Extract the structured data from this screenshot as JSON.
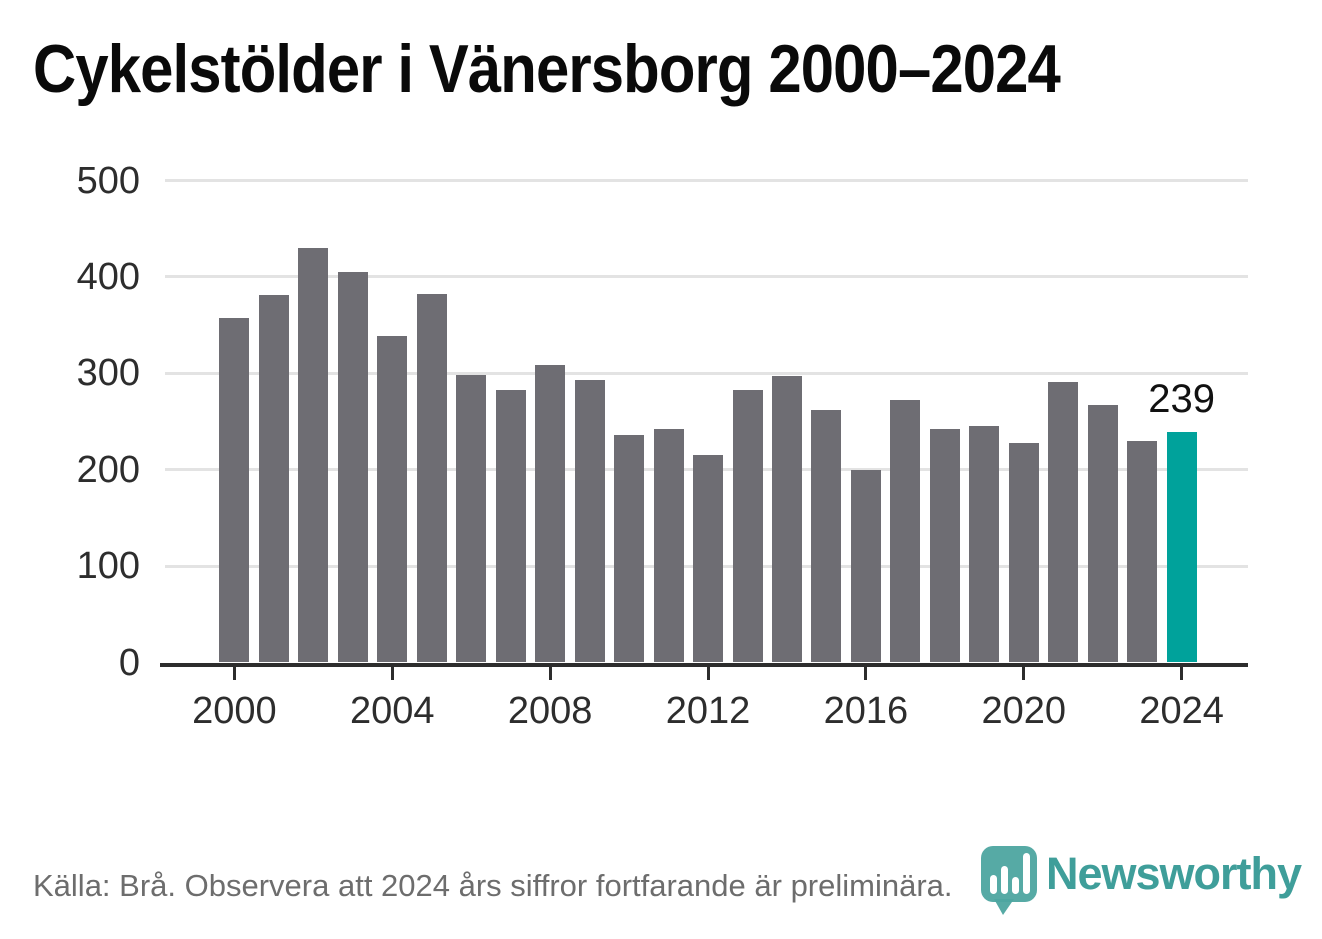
{
  "title": "Cykelstölder i Vänersborg 2000–2024",
  "chart_data": {
    "type": "bar",
    "title": "Cykelstölder i Vänersborg 2000–2024",
    "categories": [
      2000,
      2001,
      2002,
      2003,
      2004,
      2005,
      2006,
      2007,
      2008,
      2009,
      2010,
      2011,
      2012,
      2013,
      2014,
      2015,
      2016,
      2017,
      2018,
      2019,
      2020,
      2021,
      2022,
      2023,
      2024
    ],
    "values": [
      357,
      381,
      430,
      405,
      339,
      382,
      298,
      283,
      309,
      293,
      236,
      242,
      215,
      283,
      297,
      262,
      200,
      272,
      242,
      245,
      228,
      291,
      267,
      230,
      239
    ],
    "xlabel": "",
    "ylabel": "",
    "ylim": [
      0,
      500
    ],
    "yticks": [
      0,
      100,
      200,
      300,
      400,
      500
    ],
    "xticks": [
      2000,
      2004,
      2008,
      2012,
      2016,
      2020,
      2024
    ],
    "grid": "horizontal",
    "legend": "none",
    "bar_color": "#6e6d73",
    "highlight_year": 2024,
    "highlight_color": "#00a29b",
    "annotation_label": "239"
  },
  "footer": {
    "source_note": "Källa: Brå. Observera att 2024 års siffror fortfarande är preliminära."
  },
  "logo": {
    "name": "Newsworthy",
    "icon": "newsworthy-barchart-pin-icon",
    "wordmark_color": "#3f9e9a",
    "mark_color": "#4da5a0"
  }
}
